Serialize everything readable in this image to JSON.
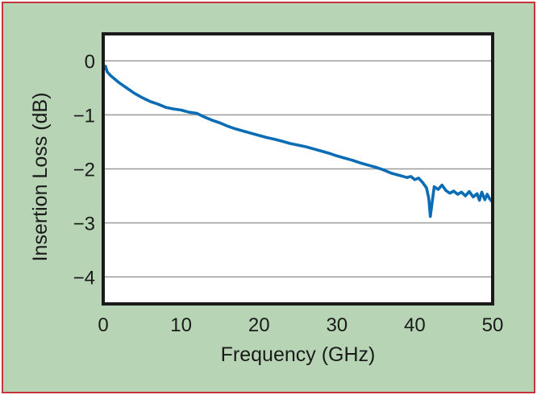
{
  "chart_data": {
    "type": "line",
    "title": "",
    "xlabel": "Frequency (GHz)",
    "ylabel": "Insertion Loss (dB)",
    "xlim": [
      0,
      50
    ],
    "ylim": [
      -4.5,
      0.5
    ],
    "x_ticks": [
      0,
      10,
      20,
      30,
      40,
      50
    ],
    "x_tick_labels": [
      "0",
      "10",
      "20",
      "30",
      "40",
      "50"
    ],
    "y_ticks": [
      0,
      -1,
      -2,
      -3,
      -4
    ],
    "y_tick_labels": [
      "0",
      "−1",
      "−2",
      "−3",
      "−4"
    ],
    "grid": "horizontal",
    "legend": "none",
    "colors": {
      "background": "#b7d5b5",
      "frame_border": "#c4343a",
      "plot_area": "#ffffff",
      "gridline": "#9a9a9a",
      "axes": "#1a1a1a",
      "series": "#0a6cb5"
    },
    "series": [
      {
        "color": "#0a6cb5",
        "x": [
          0.1,
          0.3,
          0.5,
          1,
          2,
          3,
          4,
          5,
          6,
          7,
          8,
          9,
          10,
          11,
          12,
          13,
          14,
          15,
          16,
          17,
          18,
          19,
          20,
          21,
          22,
          23,
          24,
          25,
          26,
          27,
          28,
          29,
          30,
          31,
          32,
          33,
          34,
          35,
          36,
          37,
          38,
          39,
          39.5,
          40,
          40.5,
          41,
          41.5,
          41.8,
          42,
          42.2,
          42.5,
          43,
          43.5,
          44,
          44.5,
          45,
          45.5,
          46,
          46.5,
          47,
          47.5,
          48,
          48.3,
          48.6,
          49,
          49.3,
          49.6,
          50
        ],
        "y": [
          -0.15,
          -0.1,
          -0.2,
          -0.28,
          -0.4,
          -0.5,
          -0.6,
          -0.68,
          -0.75,
          -0.8,
          -0.86,
          -0.89,
          -0.91,
          -0.95,
          -0.97,
          -1.04,
          -1.1,
          -1.15,
          -1.21,
          -1.26,
          -1.3,
          -1.34,
          -1.38,
          -1.42,
          -1.45,
          -1.49,
          -1.53,
          -1.56,
          -1.59,
          -1.63,
          -1.67,
          -1.71,
          -1.76,
          -1.8,
          -1.84,
          -1.89,
          -1.93,
          -1.97,
          -2.02,
          -2.08,
          -2.12,
          -2.16,
          -2.14,
          -2.2,
          -2.17,
          -2.25,
          -2.35,
          -2.55,
          -2.88,
          -2.65,
          -2.33,
          -2.38,
          -2.3,
          -2.4,
          -2.45,
          -2.41,
          -2.47,
          -2.43,
          -2.5,
          -2.42,
          -2.52,
          -2.46,
          -2.58,
          -2.43,
          -2.57,
          -2.47,
          -2.55,
          -2.62
        ]
      }
    ]
  }
}
